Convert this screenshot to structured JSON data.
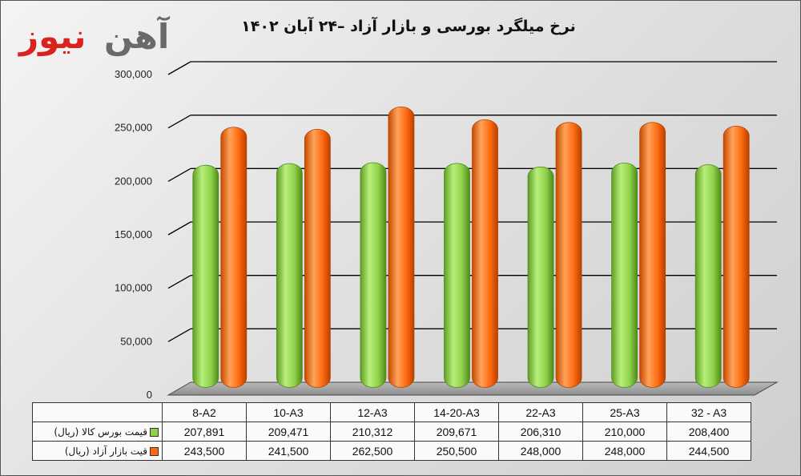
{
  "logo": {
    "word1": "آهن",
    "word2": "نیوز"
  },
  "colors": {
    "series1": "#8fd24a",
    "series2": "#ff6a10",
    "grid": "#000000"
  },
  "chart_data": {
    "type": "bar",
    "title": "نرخ میلگرد بورسی و بازار آزاد –۲۴ آبان ۱۴۰۲",
    "categories": [
      "8-A2",
      "10-A3",
      "12-A3",
      "14-20-A3",
      "22-A3",
      "25-A3",
      "32 - A3"
    ],
    "series": [
      {
        "name": "قیمت  بورس کالا (ریال)",
        "values": [
          207891,
          209471,
          210312,
          209671,
          206310,
          210000,
          208400
        ],
        "value_labels": [
          "207,891",
          "209,471",
          "210,312",
          "209,671",
          "206,310",
          "210,000",
          "208,400"
        ]
      },
      {
        "name": "قیت بازار آزاد (ریال)",
        "values": [
          243500,
          241500,
          262500,
          250500,
          248000,
          248000,
          244500
        ],
        "value_labels": [
          "243,500",
          "241,500",
          "262,500",
          "250,500",
          "248,000",
          "248,000",
          "244,500"
        ]
      }
    ],
    "yticks": [
      "0",
      "50,000",
      "100,000",
      "150,000",
      "200,000",
      "250,000",
      "300,000"
    ],
    "ylim": [
      0,
      300000
    ],
    "grid": true,
    "legend": "data-table",
    "xlabel": "",
    "ylabel": ""
  }
}
